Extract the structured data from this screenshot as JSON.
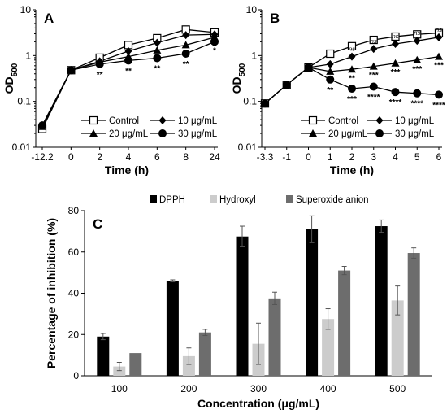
{
  "chart_data": [
    {
      "panel": "A",
      "type": "line",
      "xlabel": "Time (h)",
      "ylabel": "OD",
      "ylabel_sub": "500",
      "yscale": "log",
      "ylim": [
        0.01,
        10
      ],
      "yticks": [
        "0.01",
        "0.1",
        "1",
        "10"
      ],
      "x_ticks": [
        "-12.2",
        "0",
        "2",
        "4",
        "6",
        "8",
        "24"
      ],
      "legend": [
        "Control",
        "10 μg/mL",
        "20 μg/mL",
        "30 μg/mL"
      ],
      "series": [
        {
          "name": "Control",
          "marker": "square-open",
          "values": [
            0.025,
            0.48,
            0.9,
            1.7,
            2.4,
            3.7,
            3.2
          ]
        },
        {
          "name": "10 μg/mL",
          "marker": "diamond",
          "values": [
            0.03,
            0.48,
            0.75,
            1.25,
            1.9,
            2.8,
            2.9
          ]
        },
        {
          "name": "20 μg/mL",
          "marker": "triangle",
          "values": [
            0.028,
            0.48,
            0.72,
            0.95,
            1.3,
            1.7,
            2.5
          ]
        },
        {
          "name": "30 μg/mL",
          "marker": "circle",
          "values": [
            0.03,
            0.48,
            0.65,
            0.78,
            0.88,
            1.1,
            2.0
          ]
        }
      ],
      "significance": [
        {
          "x": "2",
          "text": "**"
        },
        {
          "x": "4",
          "text": "**"
        },
        {
          "x": "6",
          "text": "**"
        },
        {
          "x": "8",
          "text": "**"
        },
        {
          "x": "24",
          "text": "*"
        }
      ]
    },
    {
      "panel": "B",
      "type": "line",
      "xlabel": "Time (h)",
      "ylabel": "OD",
      "ylabel_sub": "500",
      "yscale": "log",
      "ylim": [
        0.01,
        10
      ],
      "yticks": [
        "0.01",
        "0.1",
        "1",
        "10"
      ],
      "x_ticks": [
        "-3.3",
        "-1",
        "0",
        "1",
        "2",
        "3",
        "4",
        "5",
        "6"
      ],
      "legend": [
        "Control",
        "10 μg/mL",
        "20 μg/mL",
        "30 μg/mL"
      ],
      "series": [
        {
          "name": "Control",
          "marker": "square-open",
          "values": [
            0.09,
            0.23,
            0.55,
            1.1,
            1.6,
            2.2,
            2.6,
            2.9,
            3.1
          ]
        },
        {
          "name": "10 μg/mL",
          "marker": "diamond",
          "values": [
            0.09,
            0.23,
            0.55,
            0.65,
            0.95,
            1.4,
            1.8,
            2.1,
            2.5
          ]
        },
        {
          "name": "20 μg/mL",
          "marker": "triangle",
          "values": [
            0.09,
            0.23,
            0.55,
            0.45,
            0.5,
            0.58,
            0.68,
            0.8,
            0.95
          ]
        },
        {
          "name": "30 μg/mL",
          "marker": "circle",
          "values": [
            0.09,
            0.23,
            0.55,
            0.3,
            0.19,
            0.21,
            0.16,
            0.15,
            0.14
          ]
        }
      ],
      "significance": [
        {
          "x": "1",
          "labels": [
            "*",
            "**"
          ]
        },
        {
          "x": "2",
          "labels": [
            "ns",
            "**",
            "***"
          ]
        },
        {
          "x": "3",
          "labels": [
            "ns",
            "***",
            "****"
          ]
        },
        {
          "x": "4",
          "labels": [
            "ns",
            "***",
            "****"
          ]
        },
        {
          "x": "5",
          "labels": [
            "ns",
            "***",
            "****"
          ]
        },
        {
          "x": "6",
          "labels": [
            "ns",
            "***",
            "****"
          ]
        }
      ]
    },
    {
      "panel": "C",
      "type": "bar",
      "xlabel": "Concentration (μg/mL)",
      "ylabel": "Percentage of inhibition (%)",
      "ylim": [
        0,
        80
      ],
      "yticks": [
        "0",
        "20",
        "40",
        "60",
        "80"
      ],
      "categories": [
        "100",
        "200",
        "300",
        "400",
        "500"
      ],
      "legend_position": "top",
      "series": [
        {
          "name": "DPPH",
          "color": "#000000",
          "values": [
            19,
            46,
            67.5,
            71,
            72.5
          ],
          "errors": [
            1.5,
            0.5,
            5,
            6.5,
            3
          ]
        },
        {
          "name": "Hydroxyl",
          "color": "#cccccc",
          "values": [
            4.5,
            9.5,
            15.5,
            27.5,
            36.5
          ],
          "errors": [
            2,
            4,
            10,
            5,
            7
          ]
        },
        {
          "name": "Superoxide anion",
          "color": "#6d6d6d",
          "values": [
            11,
            21,
            37.5,
            51,
            59.5
          ],
          "errors": [
            0,
            1.5,
            3,
            2,
            2.5
          ]
        }
      ]
    }
  ]
}
